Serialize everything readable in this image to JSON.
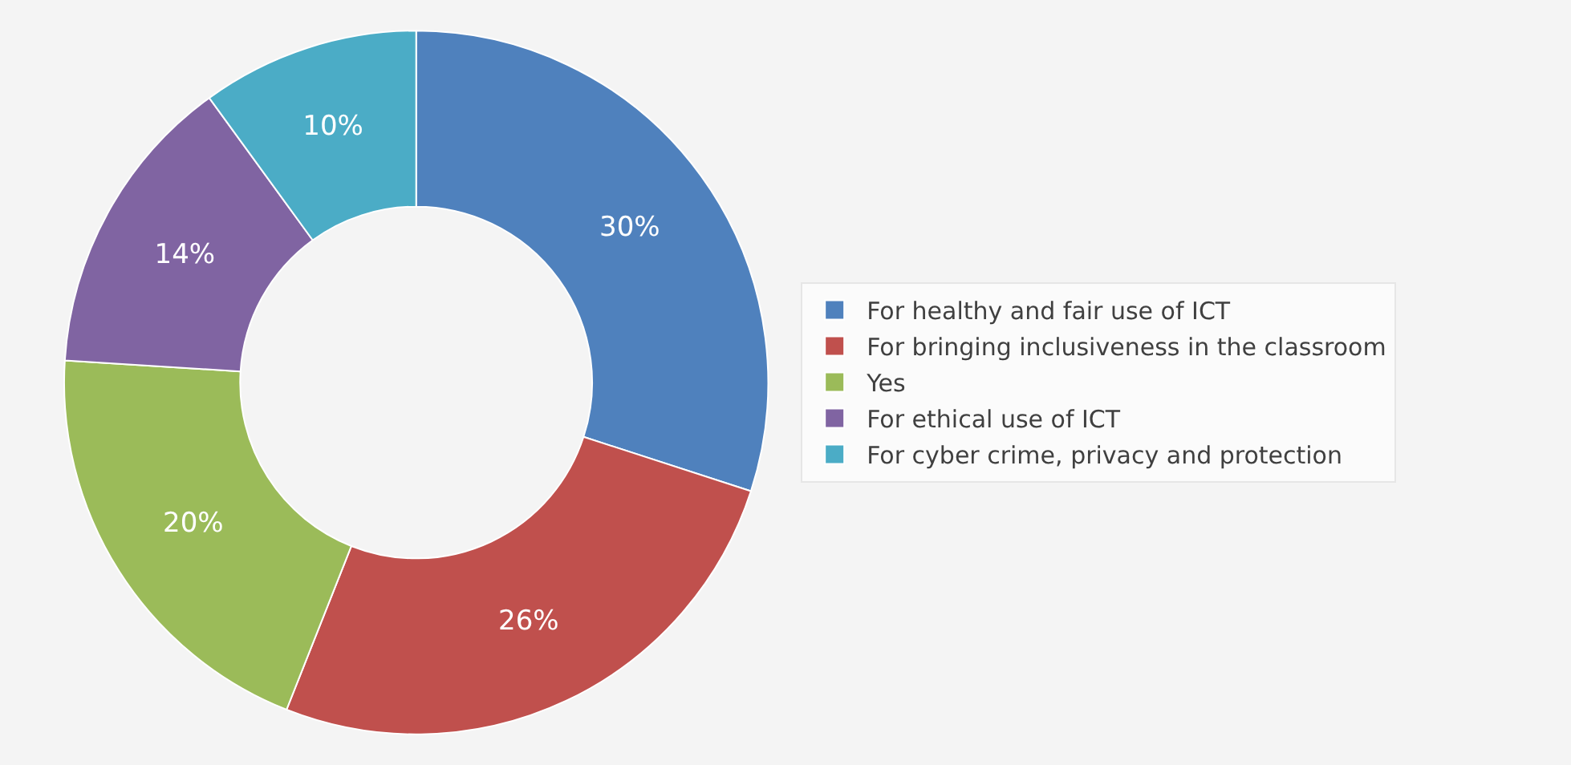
{
  "chart_data": {
    "type": "donut",
    "categories": [
      "For healthy and fair use of ICT",
      "For bringing inclusiveness in the classroom",
      "Yes",
      "For ethical use of ICT",
      "For cyber crime, privacy and protection"
    ],
    "values": [
      30,
      26,
      20,
      14,
      10
    ],
    "colors": [
      "#4f81bd",
      "#c0504d",
      "#9bbb59",
      "#8064a2",
      "#4bacc6"
    ],
    "value_labels": [
      "30%",
      "26%",
      "20%",
      "14%",
      "10%"
    ],
    "legend": "right"
  }
}
